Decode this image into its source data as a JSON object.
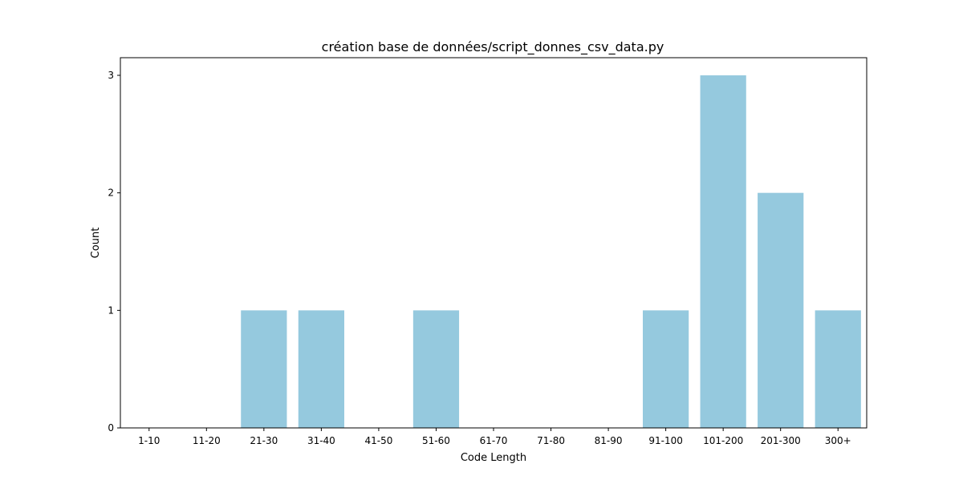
{
  "chart_data": {
    "type": "bar",
    "title": "création base de données/script_donnes_csv_data.py",
    "xlabel": "Code Length",
    "ylabel": "Count",
    "categories": [
      "1-10",
      "11-20",
      "21-30",
      "31-40",
      "41-50",
      "51-60",
      "61-70",
      "71-80",
      "81-90",
      "91-100",
      "101-200",
      "201-300",
      "300+"
    ],
    "values": [
      0,
      0,
      1,
      1,
      0,
      1,
      0,
      0,
      0,
      1,
      3,
      2,
      1
    ],
    "ylim": [
      0,
      3.15
    ],
    "yticks": [
      "0",
      "1",
      "2",
      "3"
    ],
    "bar_color": "#95c9de",
    "grid": false,
    "legend": "none"
  }
}
